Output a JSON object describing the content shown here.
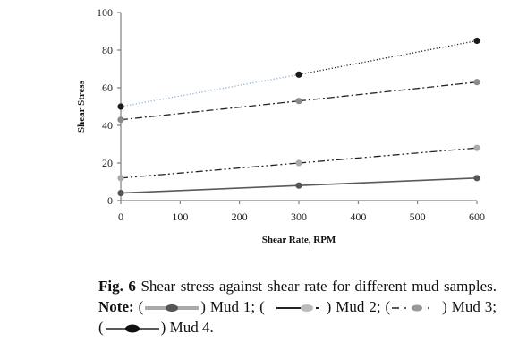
{
  "chart_data": {
    "type": "line",
    "x": [
      0,
      300,
      600
    ],
    "xlabel": "Shear Rate, RPM",
    "ylabel": "Shear Stress",
    "xlim": [
      0,
      600
    ],
    "ylim": [
      0,
      100
    ],
    "xticks": [
      0,
      100,
      200,
      300,
      400,
      500,
      600
    ],
    "yticks": [
      0,
      20,
      40,
      60,
      80,
      100
    ],
    "grid": false,
    "series": [
      {
        "values": [
          4,
          8,
          12
        ],
        "color": "#5a5a5a",
        "marker": "#555555",
        "style": "solid"
      },
      {
        "values": [
          12,
          20,
          28
        ],
        "color": "#222222",
        "marker": "#aaaaaa",
        "style": "dashdotdot"
      },
      {
        "values": [
          43,
          53,
          63
        ],
        "color": "#222222",
        "marker": "#8a8a8a",
        "style": "dashdot"
      },
      {
        "values": [
          50,
          67,
          85
        ],
        "color": "#222222",
        "marker": "#1a1a1a",
        "style": "dotted",
        "start_color": "#8fb0d8"
      }
    ]
  },
  "caption": {
    "fig_label": "Fig. 6",
    "text": " Shear stress against shear rate for different mud samples. ",
    "note_label": "Note:",
    "items": [
      ") Mud 1; (",
      ") Mud 2; (",
      ") Mud 3;",
      ") Mud 4."
    ]
  }
}
